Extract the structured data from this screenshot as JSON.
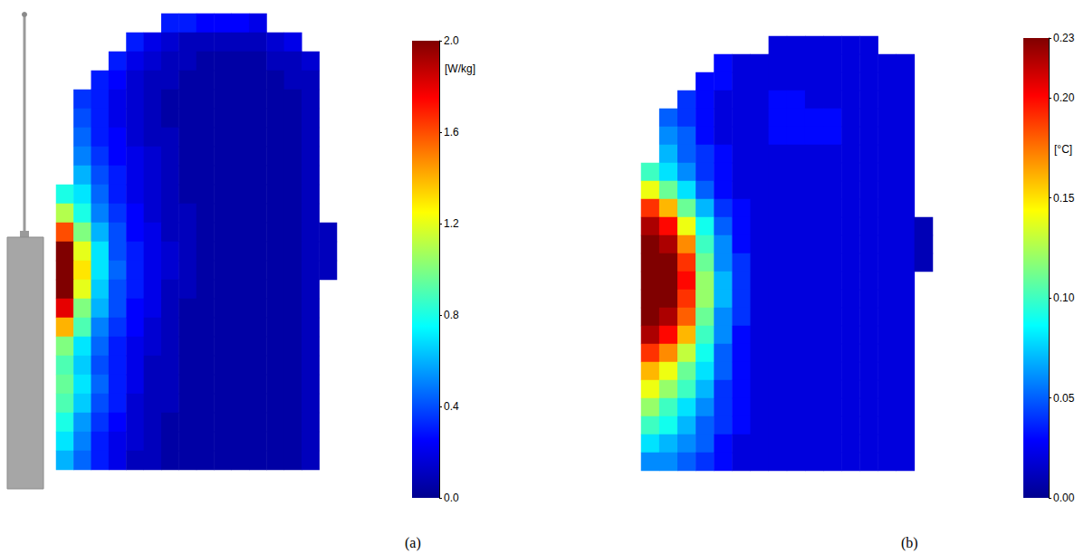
{
  "chart_data": [
    {
      "type": "heatmap",
      "title": "(a)",
      "unit": "[W/kg]",
      "colorbar": {
        "range": [
          0,
          2
        ],
        "ticks": [
          {
            "value": 0,
            "label": "0.0"
          },
          0.4,
          0.8,
          1.2,
          1.6,
          {
            "value": 2,
            "label": "2.0"
          }
        ]
      },
      "cells": [
        [
          null,
          null,
          null,
          null,
          null,
          null,
          0.3,
          0.3,
          0.25,
          0.25,
          0.25,
          0.2,
          null,
          null,
          null,
          null
        ],
        [
          null,
          null,
          null,
          null,
          0.3,
          0.2,
          0.15,
          0.1,
          0.1,
          0.1,
          0.1,
          0.1,
          0.15,
          0.2,
          null,
          null
        ],
        [
          null,
          null,
          null,
          0.3,
          0.2,
          0.15,
          0.1,
          0.1,
          0.05,
          0.05,
          0.05,
          0.05,
          0.1,
          0.1,
          0.15,
          null
        ],
        [
          null,
          null,
          0.3,
          0.25,
          0.15,
          0.1,
          0.1,
          0.05,
          0.05,
          0.05,
          0.05,
          0.05,
          0.05,
          0.1,
          0.1,
          null
        ],
        [
          null,
          0.35,
          0.3,
          0.2,
          0.15,
          0.1,
          0.05,
          0.05,
          0.05,
          0.05,
          0.05,
          0.05,
          0.05,
          0.05,
          0.1,
          null
        ],
        [
          null,
          0.4,
          0.3,
          0.2,
          0.15,
          0.1,
          0.05,
          0.05,
          0.05,
          0.05,
          0.05,
          0.05,
          0.05,
          0.05,
          0.1,
          null
        ],
        [
          null,
          0.45,
          0.3,
          0.25,
          0.15,
          0.1,
          0.1,
          0.05,
          0.05,
          0.05,
          0.05,
          0.05,
          0.05,
          0.05,
          0.1,
          null
        ],
        [
          null,
          0.5,
          0.35,
          0.25,
          0.2,
          0.15,
          0.1,
          0.05,
          0.05,
          0.05,
          0.05,
          0.05,
          0.05,
          0.05,
          0.1,
          null
        ],
        [
          null,
          0.6,
          0.4,
          0.3,
          0.2,
          0.15,
          0.1,
          0.05,
          0.05,
          0.05,
          0.05,
          0.05,
          0.05,
          0.05,
          0.1,
          null
        ],
        [
          0.8,
          0.7,
          0.45,
          0.3,
          0.2,
          0.15,
          0.1,
          0.05,
          0.05,
          0.05,
          0.05,
          0.05,
          0.05,
          0.05,
          0.1,
          null
        ],
        [
          1.1,
          0.8,
          0.5,
          0.35,
          0.25,
          0.15,
          0.1,
          0.1,
          0.05,
          0.05,
          0.05,
          0.05,
          0.05,
          0.05,
          0.1,
          null
        ],
        [
          1.6,
          1.0,
          0.6,
          0.4,
          0.25,
          0.2,
          0.1,
          0.1,
          0.05,
          0.05,
          0.05,
          0.05,
          0.05,
          0.05,
          0.1,
          0.1
        ],
        [
          2.0,
          1.2,
          0.7,
          0.4,
          0.3,
          0.2,
          0.15,
          0.1,
          0.05,
          0.05,
          0.05,
          0.05,
          0.05,
          0.05,
          0.1,
          0.1
        ],
        [
          2.0,
          1.3,
          0.7,
          0.45,
          0.3,
          0.2,
          0.15,
          0.1,
          0.05,
          0.05,
          0.05,
          0.05,
          0.05,
          0.05,
          0.1,
          0.1
        ],
        [
          2.0,
          1.2,
          0.65,
          0.4,
          0.3,
          0.2,
          0.1,
          0.1,
          0.05,
          0.05,
          0.05,
          0.05,
          0.05,
          0.05,
          0.1,
          null
        ],
        [
          1.8,
          1.0,
          0.6,
          0.4,
          0.25,
          0.2,
          0.1,
          0.05,
          0.05,
          0.05,
          0.05,
          0.05,
          0.05,
          0.05,
          0.1,
          null
        ],
        [
          1.4,
          0.9,
          0.5,
          0.35,
          0.25,
          0.15,
          0.1,
          0.05,
          0.05,
          0.05,
          0.05,
          0.05,
          0.05,
          0.05,
          0.1,
          null
        ],
        [
          1.0,
          0.7,
          0.45,
          0.3,
          0.2,
          0.15,
          0.1,
          0.05,
          0.05,
          0.05,
          0.05,
          0.05,
          0.05,
          0.05,
          0.1,
          null
        ],
        [
          0.9,
          0.65,
          0.4,
          0.3,
          0.2,
          0.1,
          0.1,
          0.05,
          0.05,
          0.05,
          0.05,
          0.05,
          0.05,
          0.05,
          0.1,
          null
        ],
        [
          0.95,
          0.7,
          0.45,
          0.3,
          0.2,
          0.1,
          0.1,
          0.05,
          0.05,
          0.05,
          0.05,
          0.05,
          0.05,
          0.05,
          0.1,
          null
        ],
        [
          0.9,
          0.65,
          0.4,
          0.3,
          0.15,
          0.1,
          0.1,
          0.05,
          0.05,
          0.05,
          0.05,
          0.05,
          0.05,
          0.05,
          0.1,
          null
        ],
        [
          0.8,
          0.55,
          0.35,
          0.25,
          0.15,
          0.1,
          0.05,
          0.05,
          0.05,
          0.05,
          0.05,
          0.05,
          0.05,
          0.05,
          0.1,
          null
        ],
        [
          0.7,
          0.5,
          0.3,
          0.2,
          0.15,
          0.1,
          0.05,
          0.05,
          0.05,
          0.05,
          0.05,
          0.05,
          0.05,
          0.05,
          0.1,
          null
        ],
        [
          0.6,
          0.45,
          0.3,
          0.2,
          0.1,
          0.1,
          0.05,
          0.05,
          0.05,
          0.05,
          0.05,
          0.05,
          0.05,
          0.05,
          0.1,
          null
        ]
      ]
    },
    {
      "type": "heatmap",
      "title": "(b)",
      "unit": "[°C]",
      "colorbar": {
        "range": [
          0,
          0.23
        ],
        "ticks": [
          {
            "value": 0,
            "label": "0.00"
          },
          0.05,
          {
            "value": 0.1,
            "label": "0.10"
          },
          0.15,
          {
            "value": 0.2,
            "label": "0.20"
          },
          0.23
        ]
      },
      "cells": [
        [
          null,
          null,
          null,
          null,
          null,
          null,
          null,
          0.02,
          0.02,
          0.02,
          0.02,
          0.02,
          0.02,
          null,
          null,
          null
        ],
        [
          null,
          null,
          null,
          null,
          0.03,
          0.02,
          0.02,
          0.02,
          0.02,
          0.02,
          0.02,
          0.02,
          0.02,
          0.02,
          0.02,
          null
        ],
        [
          null,
          null,
          null,
          0.03,
          0.03,
          0.02,
          0.02,
          0.02,
          0.02,
          0.02,
          0.02,
          0.02,
          0.02,
          0.02,
          0.02,
          null
        ],
        [
          null,
          null,
          0.04,
          0.03,
          0.02,
          0.02,
          0.02,
          0.03,
          0.03,
          0.02,
          0.02,
          0.02,
          0.02,
          0.02,
          0.02,
          null
        ],
        [
          null,
          0.05,
          0.04,
          0.03,
          0.02,
          0.02,
          0.02,
          0.03,
          0.03,
          0.03,
          0.03,
          0.02,
          0.02,
          0.02,
          0.02,
          null
        ],
        [
          null,
          0.06,
          0.05,
          0.03,
          0.02,
          0.02,
          0.02,
          0.03,
          0.03,
          0.03,
          0.03,
          0.02,
          0.02,
          0.02,
          0.02,
          null
        ],
        [
          null,
          0.07,
          0.05,
          0.04,
          0.03,
          0.02,
          0.02,
          0.02,
          0.02,
          0.02,
          0.02,
          0.02,
          0.02,
          0.02,
          0.02,
          null
        ],
        [
          0.1,
          0.08,
          0.06,
          0.04,
          0.03,
          0.02,
          0.02,
          0.02,
          0.02,
          0.02,
          0.02,
          0.02,
          0.02,
          0.02,
          0.02,
          null
        ],
        [
          0.14,
          0.11,
          0.08,
          0.05,
          0.03,
          0.02,
          0.02,
          0.02,
          0.02,
          0.02,
          0.02,
          0.02,
          0.02,
          0.02,
          0.02,
          null
        ],
        [
          0.19,
          0.16,
          0.11,
          0.07,
          0.04,
          0.03,
          0.02,
          0.02,
          0.02,
          0.02,
          0.02,
          0.02,
          0.02,
          0.02,
          0.02,
          null
        ],
        [
          0.22,
          0.2,
          0.14,
          0.09,
          0.05,
          0.03,
          0.02,
          0.02,
          0.02,
          0.02,
          0.02,
          0.02,
          0.02,
          0.02,
          0.02,
          0.01
        ],
        [
          0.23,
          0.22,
          0.17,
          0.1,
          0.06,
          0.03,
          0.02,
          0.02,
          0.02,
          0.02,
          0.02,
          0.02,
          0.02,
          0.02,
          0.02,
          0.01
        ],
        [
          0.23,
          0.23,
          0.19,
          0.11,
          0.06,
          0.04,
          0.02,
          0.02,
          0.02,
          0.02,
          0.02,
          0.02,
          0.02,
          0.02,
          0.02,
          0.01
        ],
        [
          0.23,
          0.23,
          0.2,
          0.12,
          0.07,
          0.04,
          0.02,
          0.02,
          0.02,
          0.02,
          0.02,
          0.02,
          0.02,
          0.02,
          0.02,
          null
        ],
        [
          0.23,
          0.23,
          0.19,
          0.12,
          0.07,
          0.04,
          0.02,
          0.02,
          0.02,
          0.02,
          0.02,
          0.02,
          0.02,
          0.02,
          0.02,
          null
        ],
        [
          0.23,
          0.22,
          0.18,
          0.11,
          0.06,
          0.04,
          0.02,
          0.02,
          0.02,
          0.02,
          0.02,
          0.02,
          0.02,
          0.02,
          0.02,
          null
        ],
        [
          0.22,
          0.2,
          0.16,
          0.1,
          0.06,
          0.03,
          0.02,
          0.02,
          0.02,
          0.02,
          0.02,
          0.02,
          0.02,
          0.02,
          0.02,
          null
        ],
        [
          0.19,
          0.17,
          0.13,
          0.09,
          0.05,
          0.03,
          0.02,
          0.02,
          0.02,
          0.02,
          0.02,
          0.02,
          0.02,
          0.02,
          0.02,
          null
        ],
        [
          0.16,
          0.14,
          0.11,
          0.08,
          0.05,
          0.03,
          0.02,
          0.02,
          0.02,
          0.02,
          0.02,
          0.02,
          0.02,
          0.02,
          0.02,
          null
        ],
        [
          0.14,
          0.12,
          0.1,
          0.07,
          0.04,
          0.03,
          0.02,
          0.02,
          0.02,
          0.02,
          0.02,
          0.02,
          0.02,
          0.02,
          0.02,
          null
        ],
        [
          0.12,
          0.1,
          0.08,
          0.06,
          0.04,
          0.03,
          0.02,
          0.02,
          0.02,
          0.02,
          0.02,
          0.02,
          0.02,
          0.02,
          0.02,
          null
        ],
        [
          0.1,
          0.09,
          0.07,
          0.05,
          0.04,
          0.03,
          0.02,
          0.02,
          0.02,
          0.02,
          0.02,
          0.02,
          0.02,
          0.02,
          0.02,
          null
        ],
        [
          0.08,
          0.07,
          0.06,
          0.05,
          0.03,
          0.02,
          0.02,
          0.02,
          0.02,
          0.02,
          0.02,
          0.02,
          0.02,
          0.02,
          0.02,
          null
        ],
        [
          0.06,
          0.06,
          0.05,
          0.04,
          0.03,
          0.02,
          0.02,
          0.02,
          0.02,
          0.02,
          0.02,
          0.02,
          0.02,
          0.02,
          0.02,
          null
        ]
      ]
    }
  ]
}
